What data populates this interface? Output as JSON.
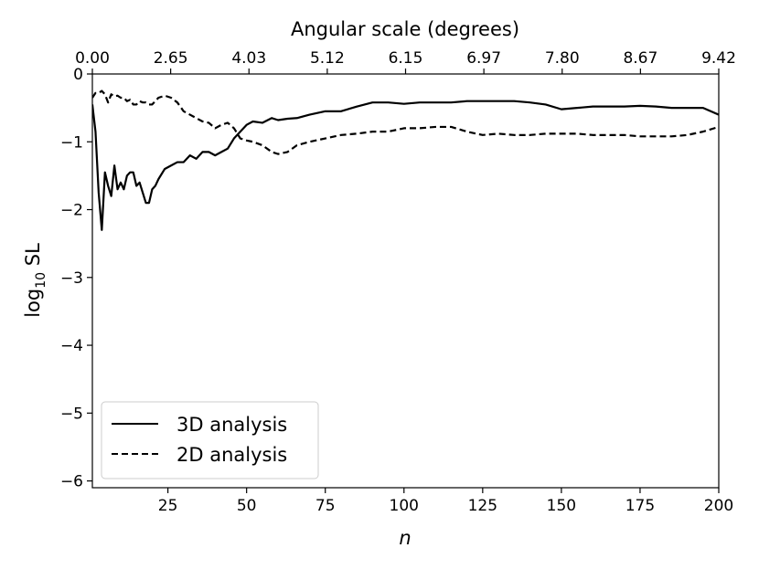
{
  "chart_data": {
    "type": "line",
    "xlabel": "n",
    "ylabel": "log",
    "ylabel_sub": "10",
    "ylabel_tail": " SL",
    "top_xlabel": "Angular scale (degrees)",
    "xlim": [
      1,
      200
    ],
    "ylim": [
      -6.1,
      0
    ],
    "xticks": [
      25,
      50,
      75,
      100,
      125,
      150,
      175,
      200
    ],
    "xtick_labels": [
      "25",
      "50",
      "75",
      "100",
      "125",
      "150",
      "175",
      "200"
    ],
    "yticks": [
      0,
      -1,
      -2,
      -3,
      -4,
      -5,
      -6
    ],
    "ytick_labels": [
      "0",
      "−1",
      "−2",
      "−3",
      "−4",
      "−5",
      "−6"
    ],
    "top_xticks": [
      1,
      25.875,
      50.75,
      75.625,
      100.5,
      125.375,
      150.25,
      175.125,
      200
    ],
    "top_xtick_labels": [
      "0.00",
      "2.65",
      "4.03",
      "5.12",
      "6.15",
      "6.97",
      "7.80",
      "8.67",
      "9.42"
    ],
    "legend_position": "lower-left",
    "series": [
      {
        "name": "3D analysis",
        "style": "solid",
        "color": "#000000",
        "x": [
          1,
          2,
          3,
          4,
          5,
          6,
          7,
          8,
          9,
          10,
          11,
          12,
          13,
          14,
          15,
          16,
          17,
          18,
          19,
          20,
          21,
          22,
          24,
          26,
          28,
          30,
          32,
          34,
          36,
          38,
          40,
          42,
          44,
          46,
          48,
          50,
          52,
          55,
          58,
          60,
          63,
          66,
          70,
          75,
          80,
          85,
          90,
          95,
          100,
          105,
          110,
          115,
          120,
          125,
          130,
          135,
          140,
          145,
          150,
          155,
          160,
          165,
          170,
          175,
          180,
          185,
          190,
          195,
          200
        ],
        "y": [
          -0.45,
          -0.85,
          -1.75,
          -2.3,
          -1.45,
          -1.65,
          -1.8,
          -1.35,
          -1.7,
          -1.6,
          -1.7,
          -1.5,
          -1.45,
          -1.45,
          -1.65,
          -1.6,
          -1.75,
          -1.9,
          -1.9,
          -1.7,
          -1.65,
          -1.55,
          -1.4,
          -1.35,
          -1.3,
          -1.3,
          -1.2,
          -1.25,
          -1.15,
          -1.15,
          -1.2,
          -1.15,
          -1.1,
          -0.95,
          -0.85,
          -0.75,
          -0.7,
          -0.72,
          -0.65,
          -0.68,
          -0.66,
          -0.65,
          -0.6,
          -0.55,
          -0.55,
          -0.48,
          -0.42,
          -0.42,
          -0.44,
          -0.42,
          -0.42,
          -0.42,
          -0.4,
          -0.4,
          -0.4,
          -0.4,
          -0.42,
          -0.45,
          -0.52,
          -0.5,
          -0.48,
          -0.48,
          -0.48,
          -0.47,
          -0.48,
          -0.5,
          -0.5,
          -0.5,
          -0.6
        ]
      },
      {
        "name": "2D analysis",
        "style": "dashed",
        "color": "#000000",
        "x": [
          1,
          2,
          3,
          4,
          5,
          6,
          7,
          8,
          9,
          10,
          11,
          12,
          13,
          14,
          15,
          16,
          17,
          18,
          19,
          20,
          22,
          24,
          26,
          28,
          30,
          32,
          34,
          36,
          38,
          40,
          42,
          44,
          46,
          48,
          50,
          52,
          55,
          58,
          60,
          63,
          66,
          70,
          75,
          80,
          85,
          90,
          95,
          100,
          105,
          110,
          115,
          120,
          125,
          130,
          135,
          140,
          145,
          150,
          155,
          160,
          165,
          170,
          175,
          180,
          185,
          190,
          195,
          200
        ],
        "y": [
          -0.35,
          -0.28,
          -0.28,
          -0.25,
          -0.3,
          -0.42,
          -0.3,
          -0.33,
          -0.32,
          -0.35,
          -0.35,
          -0.4,
          -0.38,
          -0.45,
          -0.45,
          -0.4,
          -0.42,
          -0.42,
          -0.45,
          -0.45,
          -0.35,
          -0.32,
          -0.35,
          -0.42,
          -0.55,
          -0.6,
          -0.65,
          -0.7,
          -0.72,
          -0.8,
          -0.75,
          -0.72,
          -0.8,
          -0.95,
          -0.98,
          -1.0,
          -1.05,
          -1.15,
          -1.18,
          -1.15,
          -1.05,
          -1.0,
          -0.95,
          -0.9,
          -0.88,
          -0.85,
          -0.85,
          -0.8,
          -0.8,
          -0.78,
          -0.78,
          -0.85,
          -0.9,
          -0.88,
          -0.9,
          -0.9,
          -0.88,
          -0.88,
          -0.88,
          -0.9,
          -0.9,
          -0.9,
          -0.92,
          -0.92,
          -0.92,
          -0.9,
          -0.85,
          -0.78
        ]
      }
    ]
  }
}
